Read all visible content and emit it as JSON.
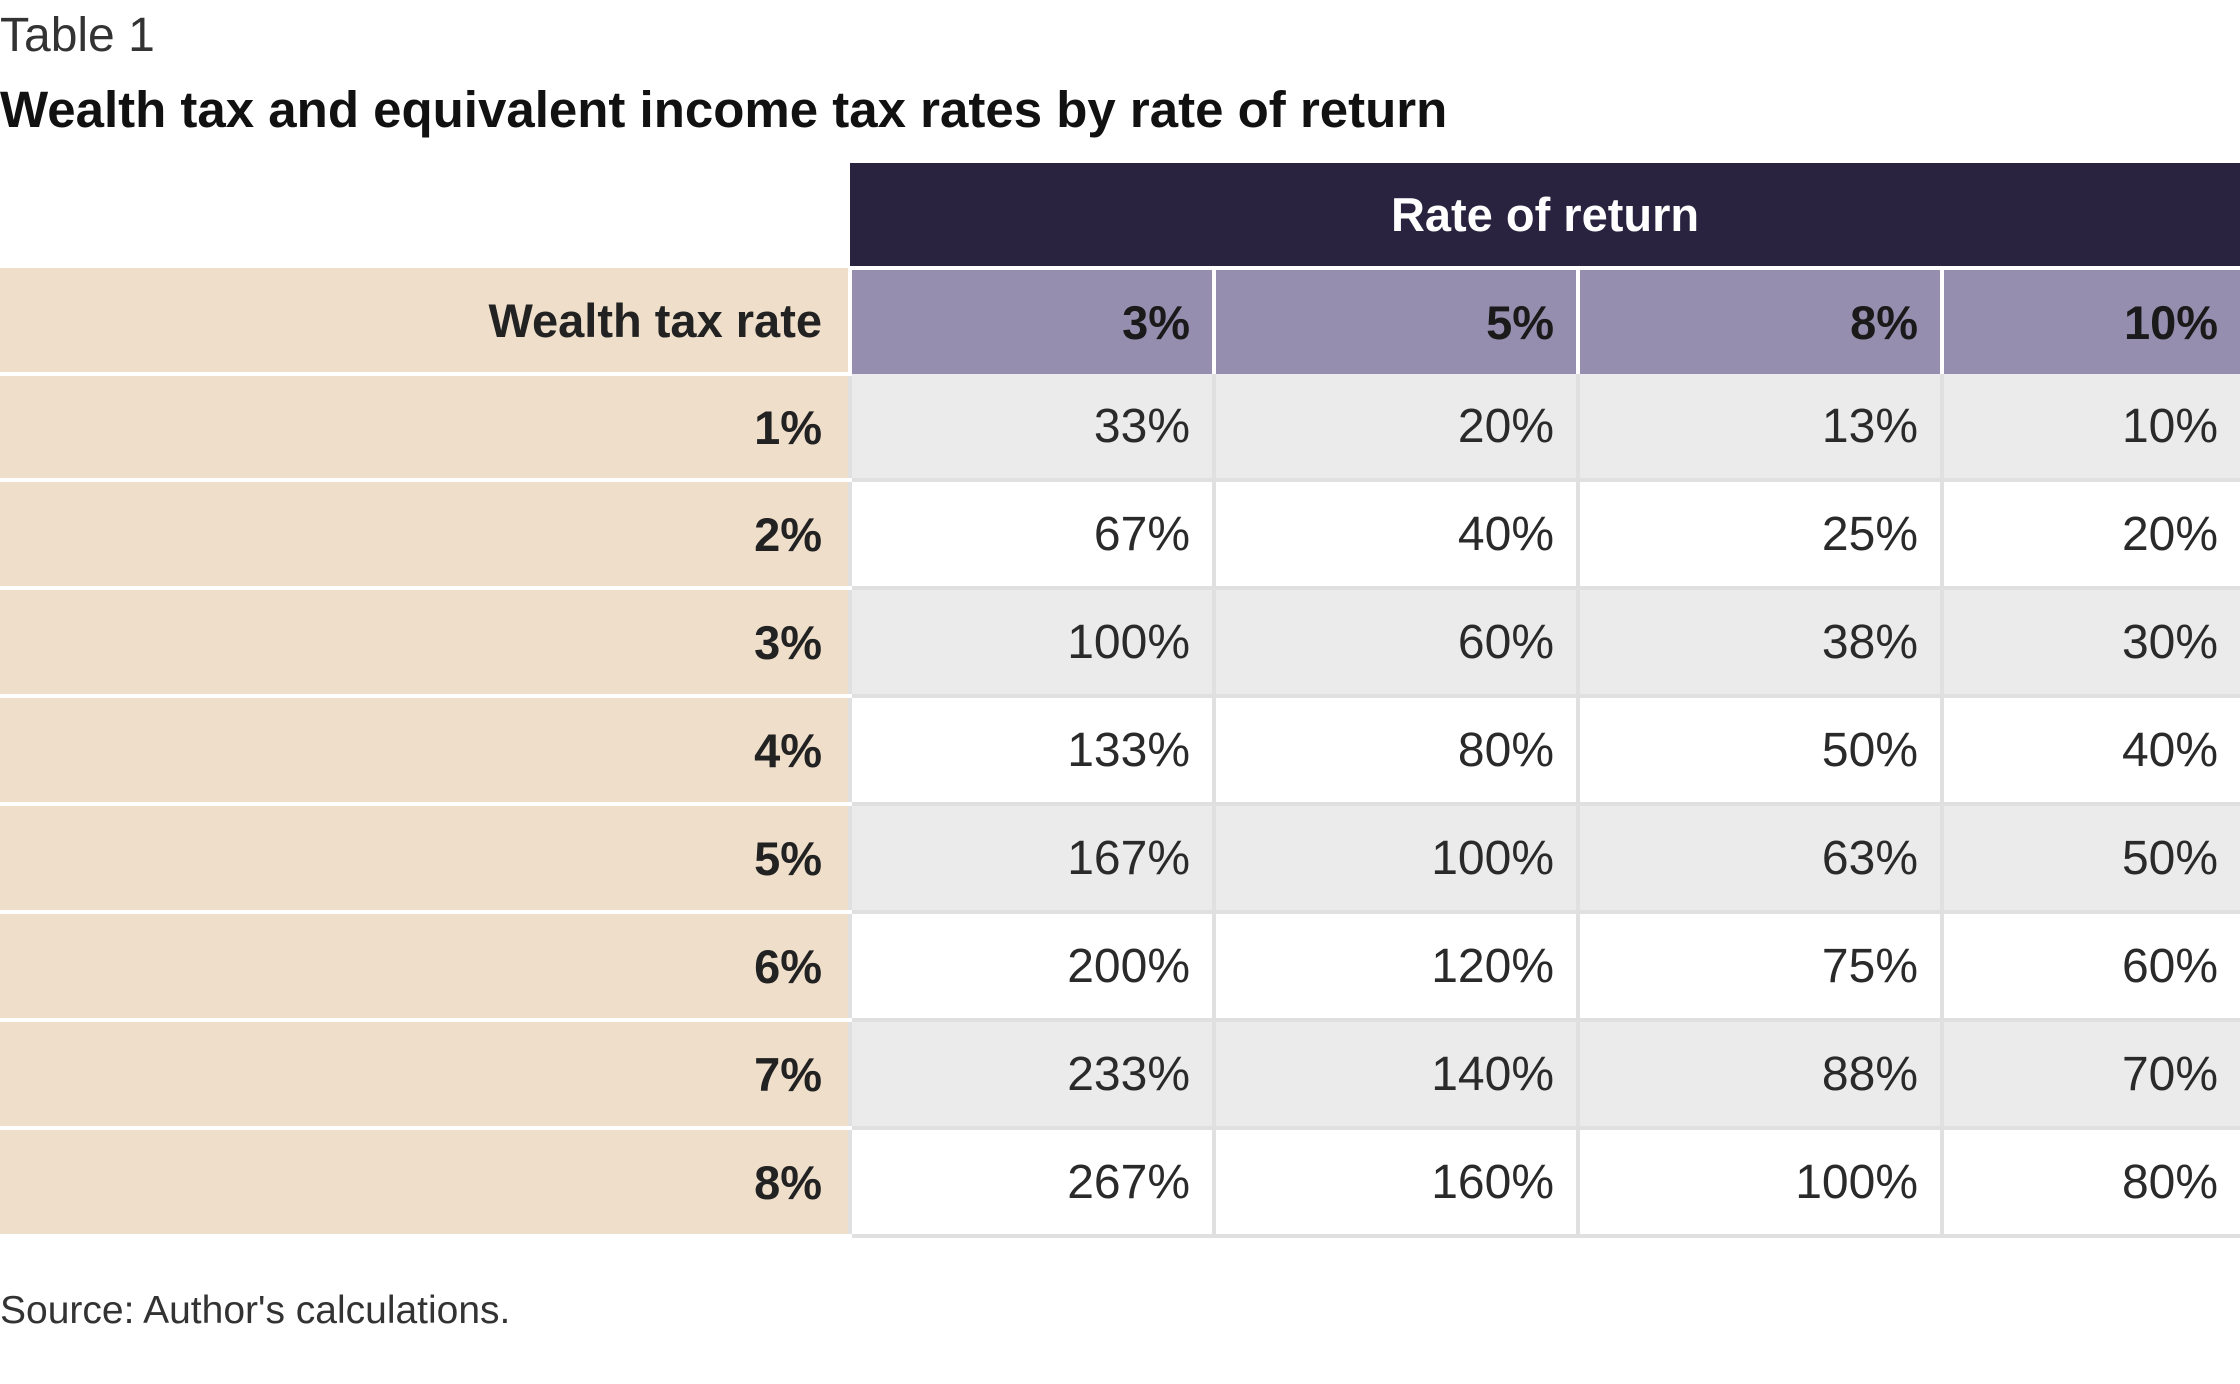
{
  "table_label": "Table 1",
  "title": "Wealth tax and equivalent income tax rates by rate of return",
  "source": "Source: Author's calculations.",
  "colors": {
    "group_header_bg": "#29233f",
    "column_header_bg": "#968eaf",
    "row_header_bg": "#efdfca",
    "shaded_row_bg": "#ebebeb"
  },
  "chart_data": {
    "type": "table",
    "title": "Wealth tax and equivalent income tax rates by rate of return",
    "column_group_label": "Rate of return",
    "row_header_label": "Wealth tax rate",
    "columns": [
      "3%",
      "5%",
      "8%",
      "10%"
    ],
    "rows": [
      {
        "label": "1%",
        "values": [
          "33%",
          "20%",
          "13%",
          "10%"
        ]
      },
      {
        "label": "2%",
        "values": [
          "67%",
          "40%",
          "25%",
          "20%"
        ]
      },
      {
        "label": "3%",
        "values": [
          "100%",
          "60%",
          "38%",
          "30%"
        ]
      },
      {
        "label": "4%",
        "values": [
          "133%",
          "80%",
          "50%",
          "40%"
        ]
      },
      {
        "label": "5%",
        "values": [
          "167%",
          "100%",
          "63%",
          "50%"
        ]
      },
      {
        "label": "6%",
        "values": [
          "200%",
          "120%",
          "75%",
          "60%"
        ]
      },
      {
        "label": "7%",
        "values": [
          "233%",
          "140%",
          "88%",
          "70%"
        ]
      },
      {
        "label": "8%",
        "values": [
          "267%",
          "160%",
          "100%",
          "80%"
        ]
      }
    ]
  }
}
